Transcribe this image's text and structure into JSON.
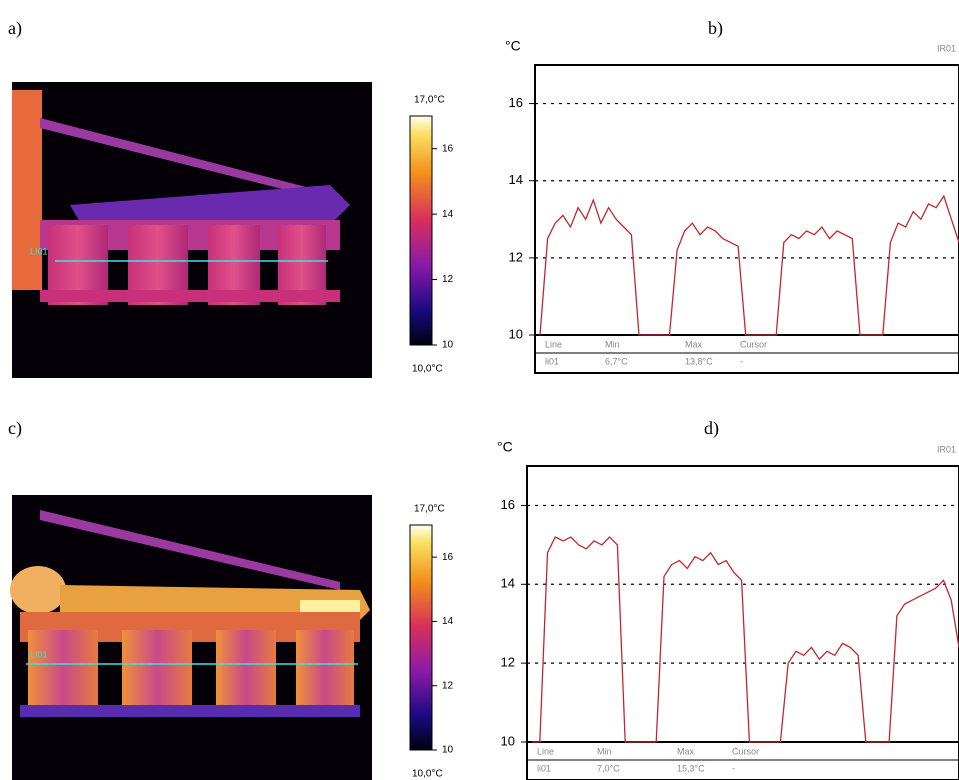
{
  "panel_labels": [
    "a)",
    "b)",
    "c)",
    "d)"
  ],
  "thermal_images": [
    {
      "line_label": "LI01",
      "scale": {
        "max_label": "17,0°C",
        "min_label": "10,0°C",
        "lim": [
          10,
          17
        ],
        "ticks": [
          16,
          14,
          12,
          10
        ]
      }
    },
    {
      "line_label": "LI01",
      "scale": {
        "max_label": "17,0°C",
        "min_label": "10,0°C",
        "lim": [
          10,
          17
        ],
        "ticks": [
          16,
          14,
          12,
          10
        ]
      }
    }
  ],
  "chart_data": [
    {
      "type": "line",
      "y_label": "°C",
      "corner_label": "IR01",
      "ylim": [
        10,
        17
      ],
      "yticks": [
        10,
        12,
        14,
        16
      ],
      "grid": true,
      "series": [
        {
          "color": "#c0282d",
          "values": [
            10,
            12.5,
            12.9,
            13.1,
            12.8,
            13.3,
            13.0,
            13.5,
            12.9,
            13.3,
            13.0,
            12.8,
            12.6,
            10,
            10,
            10,
            10,
            10,
            12.2,
            12.7,
            12.9,
            12.6,
            12.8,
            12.7,
            12.5,
            12.4,
            12.3,
            10,
            10,
            10,
            10,
            10,
            12.4,
            12.6,
            12.5,
            12.7,
            12.6,
            12.8,
            12.5,
            12.7,
            12.6,
            12.5,
            10,
            10,
            10,
            10,
            12.4,
            12.9,
            12.8,
            13.2,
            13.0,
            13.4,
            13.3,
            13.6,
            13.0,
            12.4
          ]
        }
      ],
      "table": {
        "header": [
          "Line",
          "Min",
          "Max",
          "Cursor"
        ],
        "row": [
          "li01",
          "6,7°C",
          "13,8°C",
          "-"
        ]
      }
    },
    {
      "type": "line",
      "y_label": "°C",
      "corner_label": "IR01",
      "ylim": [
        10,
        17
      ],
      "yticks": [
        10,
        12,
        14,
        16
      ],
      "grid": true,
      "series": [
        {
          "color": "#c0282d",
          "values": [
            10,
            10,
            14.8,
            15.2,
            15.1,
            15.2,
            15.0,
            14.9,
            15.1,
            15.0,
            15.2,
            15.0,
            10,
            10,
            10,
            10,
            10,
            14.2,
            14.5,
            14.6,
            14.4,
            14.7,
            14.6,
            14.8,
            14.5,
            14.6,
            14.3,
            14.1,
            10,
            10,
            10,
            10,
            10,
            12.0,
            12.3,
            12.2,
            12.4,
            12.1,
            12.3,
            12.2,
            12.5,
            12.4,
            12.2,
            10,
            10,
            10,
            10,
            13.2,
            13.5,
            13.6,
            13.7,
            13.8,
            13.9,
            14.1,
            13.6,
            12.4
          ]
        }
      ],
      "table": {
        "header": [
          "Line",
          "Min",
          "Max",
          "Cursor"
        ],
        "row": [
          "li01",
          "7,0°C",
          "15,3°C",
          "-"
        ]
      }
    }
  ]
}
